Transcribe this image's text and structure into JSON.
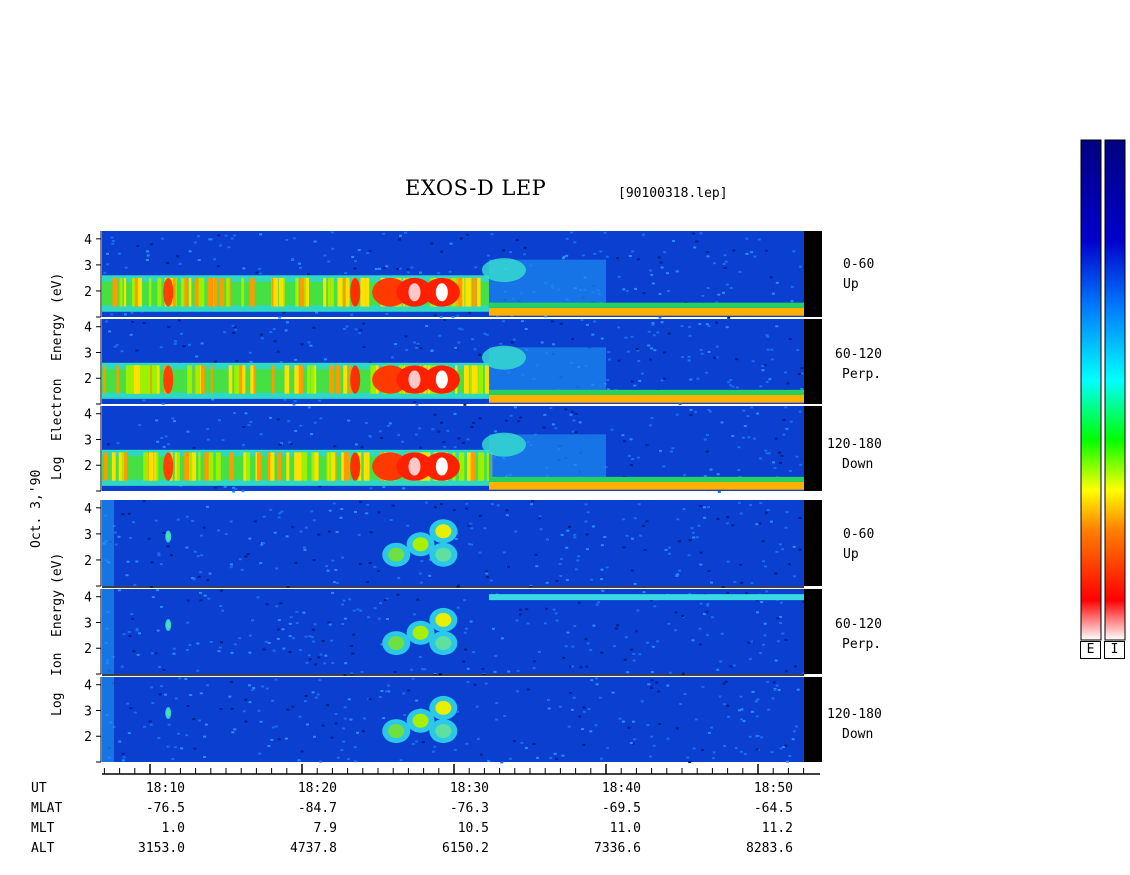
{
  "chart_data": {
    "type": "heatmap",
    "title": "EXOS-D LEP",
    "file_label": "[90100318.lep]",
    "date_label": "Oct. 3,'90",
    "electron_ylabel": [
      "Log",
      "Electron",
      "Energy",
      "(eV)"
    ],
    "ion_ylabel": [
      "Log",
      "Ion",
      "Energy",
      "(eV)"
    ],
    "y_ticks": [
      "2",
      "3",
      "4"
    ],
    "pitch_angle_labels": [
      {
        "range": "0-60",
        "dir": "Up"
      },
      {
        "range": "60-120",
        "dir": "Perp."
      },
      {
        "range": "120-180",
        "dir": "Down"
      }
    ],
    "ylim": [
      1,
      4.3
    ],
    "x_ticks": [
      "18:10",
      "18:20",
      "18:30",
      "18:40",
      "18:50"
    ],
    "footer_rows": [
      {
        "label": "UT",
        "values": [
          "18:10",
          "18:20",
          "18:30",
          "18:40",
          "18:50"
        ]
      },
      {
        "label": "MLAT",
        "values": [
          "-76.5",
          "-84.7",
          "-76.3",
          "-69.5",
          "-64.5"
        ]
      },
      {
        "label": "MLT",
        "values": [
          "1.0",
          "7.9",
          "10.5",
          "11.0",
          "11.2"
        ]
      },
      {
        "label": "ALT",
        "values": [
          "3153.0",
          "4737.8",
          "6150.2",
          "7336.6",
          "8283.6"
        ]
      }
    ],
    "colorbar_labels": [
      "E",
      "I"
    ],
    "colorbar_colors": [
      "#ffffff",
      "#ff0000",
      "#ff8000",
      "#ffff00",
      "#00ff00",
      "#00ffff",
      "#0080ff",
      "#0000cc",
      "#000080"
    ]
  }
}
